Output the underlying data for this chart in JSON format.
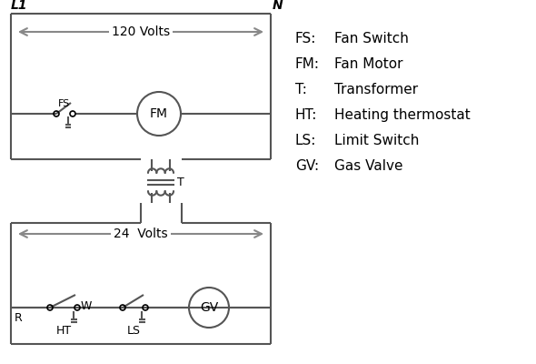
{
  "bg_color": "#ffffff",
  "line_color": "#555555",
  "arrow_color": "#888888",
  "text_color": "#000000",
  "legend": [
    [
      "FS:",
      "Fan Switch"
    ],
    [
      "FM:",
      "Fan Motor"
    ],
    [
      "T:",
      "Transformer"
    ],
    [
      "HT:",
      "Heating thermostat"
    ],
    [
      "LS:",
      "Limit Switch"
    ],
    [
      "GV:",
      "Gas Valve"
    ]
  ],
  "L1_label": "L1",
  "N_label": "N",
  "volts120_label": "120 Volts",
  "volts24_label": "24  Volts",
  "FS_label": "FS",
  "FM_label": "FM",
  "T_label": "T",
  "R_label": "R",
  "W_label": "W",
  "HT_label": "HT",
  "LS_label": "LS",
  "GV_label": "GV"
}
